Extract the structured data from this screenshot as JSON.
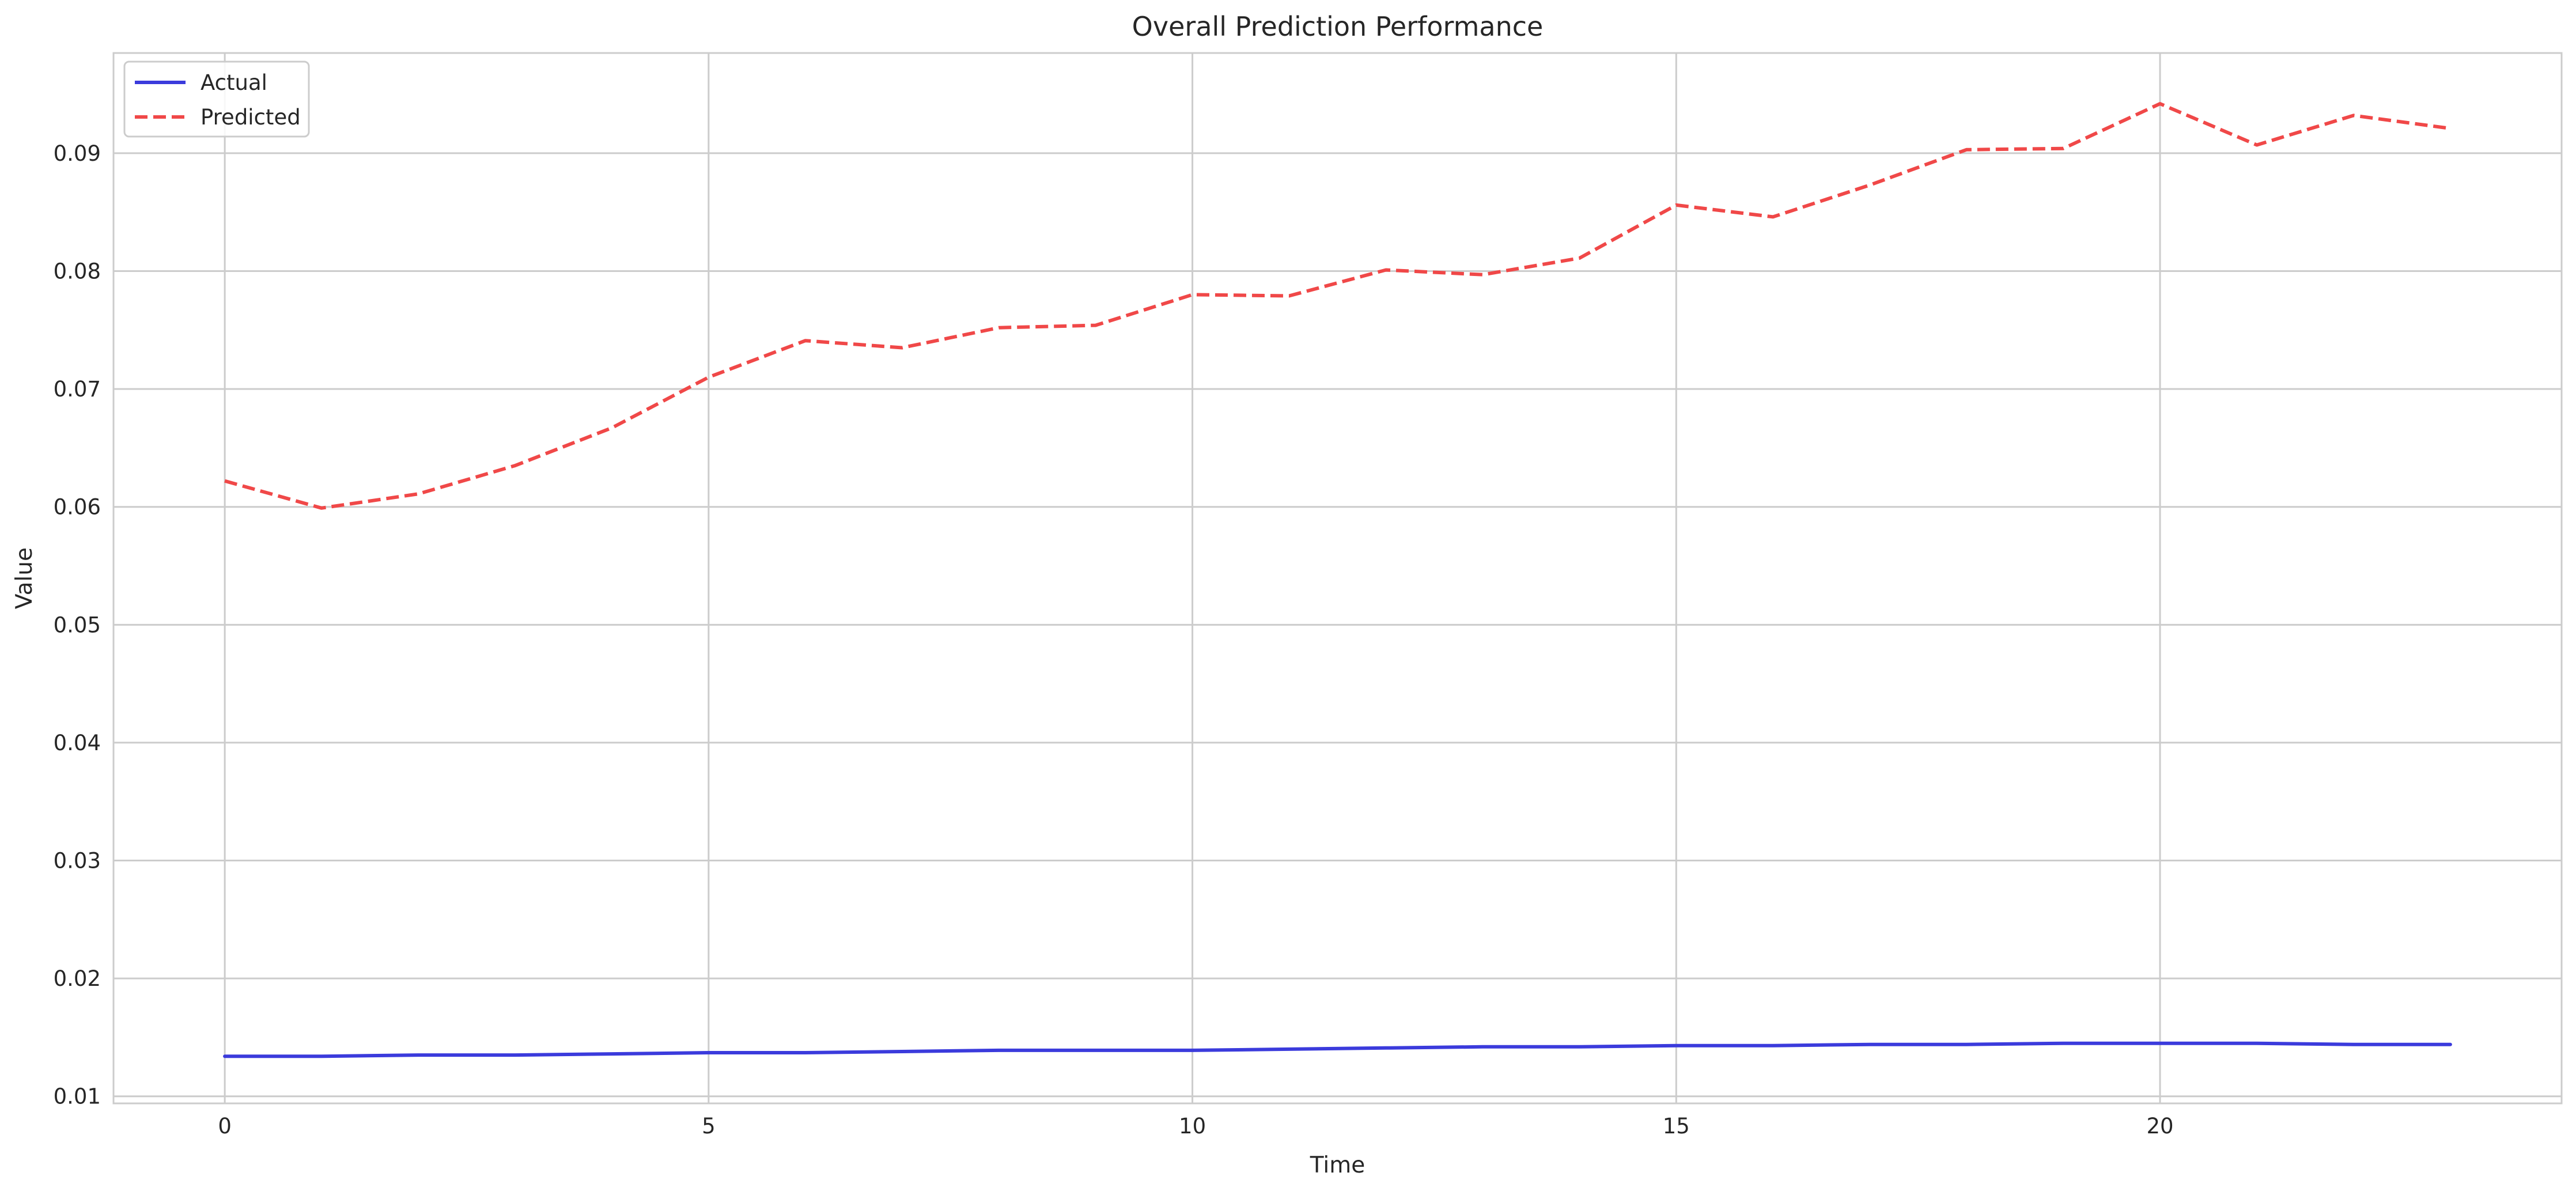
{
  "chart_data": {
    "type": "line",
    "title": "Overall Prediction Performance",
    "xlabel": "Time",
    "ylabel": "Value",
    "xlim": [
      -1.15,
      24.15
    ],
    "ylim": [
      0.0094,
      0.0985
    ],
    "xticks": [
      0,
      5,
      10,
      15,
      20
    ],
    "xtick_labels": [
      "0",
      "5",
      "10",
      "15",
      "20"
    ],
    "yticks": [
      0.01,
      0.02,
      0.03,
      0.04,
      0.05,
      0.06,
      0.07,
      0.08,
      0.09
    ],
    "ytick_labels": [
      "0.01",
      "0.02",
      "0.03",
      "0.04",
      "0.05",
      "0.06",
      "0.07",
      "0.08",
      "0.09"
    ],
    "grid": true,
    "legend_position": "top-left",
    "x": [
      0,
      1,
      2,
      3,
      4,
      5,
      6,
      7,
      8,
      9,
      10,
      11,
      12,
      13,
      14,
      15,
      16,
      17,
      18,
      19,
      20,
      21,
      22,
      23
    ],
    "series": [
      {
        "name": "Actual",
        "color": "#3b3bdc",
        "style": "solid",
        "values": [
          0.0134,
          0.0134,
          0.0135,
          0.0135,
          0.0136,
          0.0137,
          0.0137,
          0.0138,
          0.0139,
          0.0139,
          0.0139,
          0.014,
          0.0141,
          0.0142,
          0.0142,
          0.0143,
          0.0143,
          0.0144,
          0.0144,
          0.0145,
          0.0145,
          0.0145,
          0.0144,
          0.0144
        ]
      },
      {
        "name": "Predicted",
        "color": "#f04848",
        "style": "dashed",
        "values": [
          0.0622,
          0.0599,
          0.0611,
          0.0635,
          0.0667,
          0.071,
          0.0741,
          0.0735,
          0.0752,
          0.0754,
          0.078,
          0.0779,
          0.0801,
          0.0797,
          0.0811,
          0.0856,
          0.0846,
          0.0873,
          0.0903,
          0.0904,
          0.0942,
          0.0907,
          0.0932,
          0.0921
        ]
      }
    ]
  }
}
